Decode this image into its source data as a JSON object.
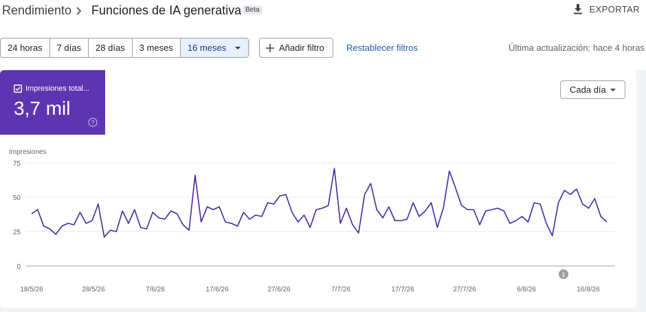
{
  "header": {
    "breadcrumb_root": "Rendimiento",
    "page_title": "Funciones de IA generativa",
    "beta_badge": "Beta",
    "export_label": "EXPORTAR"
  },
  "filters": {
    "date_ranges": [
      "24 horas",
      "7 días",
      "28 días",
      "3 meses",
      "16 meses"
    ],
    "selected_range": "16 meses",
    "add_filter_label": "Añadir filtro",
    "reset_label": "Restablecer filtros",
    "last_updated": "Última actualización: hace 4 horas"
  },
  "metric_card": {
    "label": "Impresiones total...",
    "value": "3,7 mil",
    "checked": true,
    "color": "#5e35b1"
  },
  "granularity": {
    "label": "Cada día"
  },
  "annotation": {
    "label": "1",
    "date": "12/8/26"
  },
  "chart_data": {
    "type": "line",
    "ylabel": "Impresiones",
    "ylim": [
      0,
      75
    ],
    "yticks": [
      0,
      25,
      50,
      75
    ],
    "xticks": [
      "18/5/26",
      "28/5/26",
      "7/6/26",
      "17/6/26",
      "27/6/26",
      "7/7/26",
      "17/7/26",
      "27/7/26",
      "6/8/26",
      "16/8/26"
    ],
    "x_start": "18/5/26",
    "x_end": "19/8/26",
    "series": [
      {
        "color": "#4527a0",
        "values": [
          38,
          41,
          29,
          27,
          23,
          29,
          31,
          30,
          39,
          31,
          33,
          45,
          21,
          26,
          25,
          40,
          31,
          41,
          28,
          27,
          39,
          35,
          34,
          40,
          38,
          30,
          26,
          66,
          32,
          43,
          41,
          43,
          32,
          31,
          29,
          39,
          34,
          37,
          36,
          46,
          45,
          51,
          52,
          39,
          32,
          37,
          28,
          41,
          42,
          44,
          71,
          31,
          42,
          30,
          24,
          52,
          60,
          41,
          35,
          43,
          33,
          33,
          34,
          46,
          36,
          40,
          46,
          28,
          42,
          69,
          57,
          44,
          41,
          41,
          30,
          40,
          41,
          42,
          40,
          31,
          33,
          36,
          32,
          46,
          45,
          31,
          22,
          46,
          55,
          52,
          56,
          45,
          42,
          49,
          36,
          32
        ]
      }
    ]
  }
}
